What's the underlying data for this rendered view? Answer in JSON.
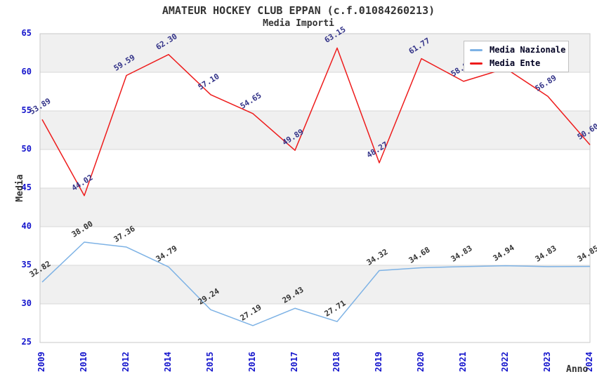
{
  "chart_data": {
    "type": "line",
    "title": "AMATEUR HOCKEY CLUB EPPAN (c.f.01084260213)",
    "subtitle": "Media Importi",
    "xlabel": "Anno",
    "ylabel": "Media",
    "ylim": [
      25,
      65
    ],
    "ytick_step": 5,
    "y_ticks": [
      25,
      30,
      35,
      40,
      45,
      50,
      55,
      60,
      65
    ],
    "categories": [
      "2009",
      "2010",
      "2012",
      "2014",
      "2015",
      "2016",
      "2017",
      "2018",
      "2019",
      "2020",
      "2021",
      "2022",
      "2023",
      "2024"
    ],
    "grid": true,
    "legend_position": "top-right",
    "series": [
      {
        "name": "Media Nazionale",
        "color": "#7db2e5",
        "label_color": "#333333",
        "values": [
          32.82,
          38.0,
          37.36,
          34.79,
          29.24,
          27.19,
          29.43,
          27.71,
          34.32,
          34.68,
          34.83,
          34.94,
          34.83,
          34.85
        ],
        "labels": [
          "32.82",
          "38.00",
          "37.36",
          "34.79",
          "29.24",
          "27.19",
          "29.43",
          "27.71",
          "34.32",
          "34.68",
          "34.83",
          "34.94",
          "34.83",
          "34.85"
        ]
      },
      {
        "name": "Media Ente",
        "color": "#ee1c1c",
        "label_color": "#333388",
        "values": [
          53.89,
          44.02,
          59.59,
          62.3,
          57.1,
          54.65,
          49.89,
          63.15,
          48.27,
          61.77,
          58.83,
          60.5,
          56.89,
          50.6
        ],
        "labels": [
          "53.89",
          "44.02",
          "59.59",
          "62.30",
          "57.10",
          "54.65",
          "49.89",
          "63.15",
          "48.27",
          "61.77",
          "58.83",
          "",
          "56.89",
          "50.60"
        ]
      }
    ],
    "style": {
      "tick_color": "#1414cc",
      "band_gray": "#f0f0f0",
      "band_white": "#ffffff",
      "grid_color": "#d8d8d8",
      "border_color": "#c8c8c8",
      "title_color": "#333333"
    }
  }
}
